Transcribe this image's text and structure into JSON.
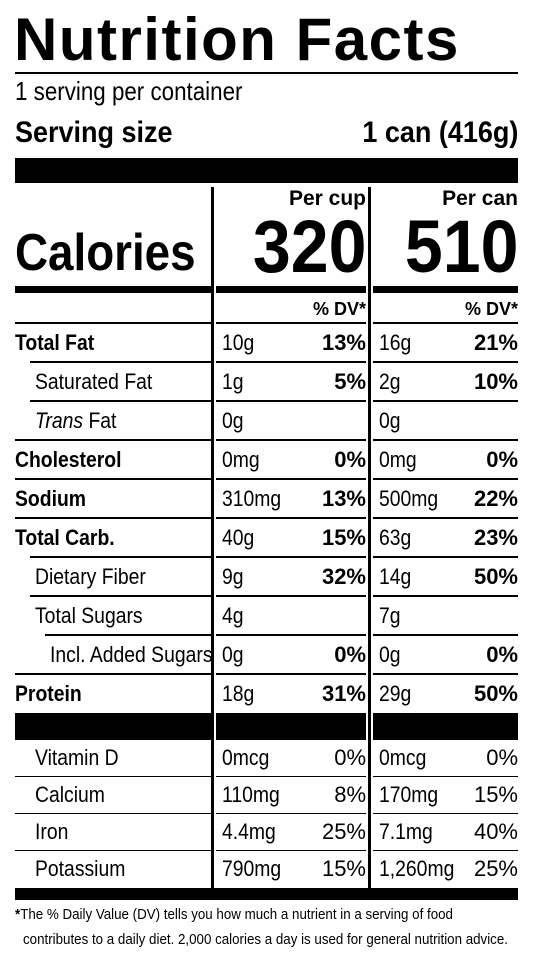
{
  "title": "Nutrition Facts",
  "servings": "1 serving per container",
  "serving_size": {
    "label": "Serving size",
    "value": "1 can (416g)"
  },
  "columns": [
    "Per cup",
    "Per can"
  ],
  "calories": {
    "label": "Calories",
    "values": [
      "320",
      "510"
    ]
  },
  "dv_header": [
    "% DV*",
    "% DV*"
  ],
  "nutrients": [
    {
      "name": "Total Fat",
      "level": 0,
      "cup": {
        "amount": "10g",
        "dv": "13%"
      },
      "can": {
        "amount": "16g",
        "dv": "21%"
      }
    },
    {
      "name": "Saturated Fat",
      "level": 1,
      "cup": {
        "amount": "1g",
        "dv": "5%"
      },
      "can": {
        "amount": "2g",
        "dv": "10%"
      }
    },
    {
      "name_em": "Trans",
      "name": "Fat",
      "level": 1,
      "cup": {
        "amount": "0g"
      },
      "can": {
        "amount": "0g"
      }
    },
    {
      "name": "Cholesterol",
      "level": 0,
      "cup": {
        "amount": "0mg",
        "dv": "0%"
      },
      "can": {
        "amount": "0mg",
        "dv": "0%"
      }
    },
    {
      "name": "Sodium",
      "level": 0,
      "cup": {
        "amount": "310mg",
        "dv": "13%"
      },
      "can": {
        "amount": "500mg",
        "dv": "22%"
      }
    },
    {
      "name": "Total Carb.",
      "level": 0,
      "cup": {
        "amount": "40g",
        "dv": "15%"
      },
      "can": {
        "amount": "63g",
        "dv": "23%"
      }
    },
    {
      "name": "Dietary Fiber",
      "level": 1,
      "cup": {
        "amount": "9g",
        "dv": "32%"
      },
      "can": {
        "amount": "14g",
        "dv": "50%"
      }
    },
    {
      "name": "Total Sugars",
      "level": 1,
      "cup": {
        "amount": "4g"
      },
      "can": {
        "amount": "7g"
      }
    },
    {
      "name": "Incl. Added Sugars",
      "level": 2,
      "cup": {
        "amount": "0g",
        "dv": "0%"
      },
      "can": {
        "amount": "0g",
        "dv": "0%"
      }
    },
    {
      "name": "Protein",
      "level": 0,
      "cup": {
        "amount": "18g",
        "dv": "31%"
      },
      "can": {
        "amount": "29g",
        "dv": "50%"
      }
    }
  ],
  "vitamins": [
    {
      "name": "Vitamin D",
      "cup": {
        "amount": "0mcg",
        "dv": "0%"
      },
      "can": {
        "amount": "0mcg",
        "dv": "0%"
      }
    },
    {
      "name": "Calcium",
      "cup": {
        "amount": "110mg",
        "dv": "8%"
      },
      "can": {
        "amount": "170mg",
        "dv": "15%"
      }
    },
    {
      "name": "Iron",
      "cup": {
        "amount": "4.4mg",
        "dv": "25%"
      },
      "can": {
        "amount": "7.1mg",
        "dv": "40%"
      }
    },
    {
      "name": "Potassium",
      "cup": {
        "amount": "790mg",
        "dv": "15%"
      },
      "can": {
        "amount": "1,260mg",
        "dv": "25%"
      }
    }
  ],
  "footnote": {
    "mark": "*",
    "lines": [
      "The % Daily Value (DV) tells you how much a nutrient in a serving of food",
      "contributes to a daily diet. 2,000 calories a day is used for general nutrition advice."
    ]
  }
}
